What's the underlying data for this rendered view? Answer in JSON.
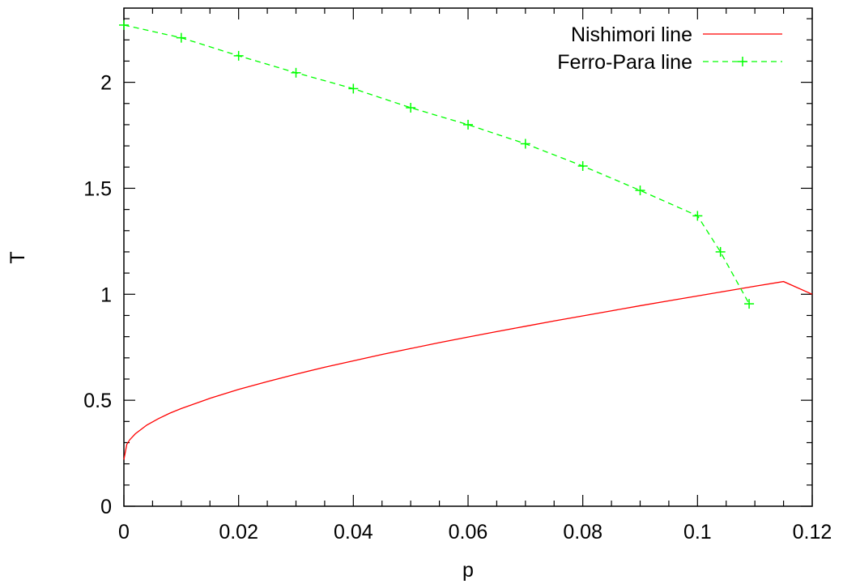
{
  "chart_data": {
    "type": "line",
    "xlabel": "p",
    "ylabel": "T",
    "xlim": [
      0,
      0.12
    ],
    "ylim": [
      0,
      2.35
    ],
    "xticks": [
      "0",
      "0.02",
      "0.04",
      "0.06",
      "0.08",
      "0.1",
      "0.12"
    ],
    "xtick_values": [
      0,
      0.02,
      0.04,
      0.06,
      0.08,
      0.1,
      0.12
    ],
    "yticks": [
      "0",
      "0.5",
      "1",
      "1.5",
      "2"
    ],
    "ytick_values": [
      0,
      0.5,
      1,
      1.5,
      2
    ],
    "legend_position": "top-right",
    "grid": false,
    "series": [
      {
        "name": "Nishimori line",
        "style": "solid",
        "color": "#ff0000",
        "markers": false,
        "x": [
          0,
          0.0005,
          0.001,
          0.002,
          0.004,
          0.006,
          0.008,
          0.01,
          0.015,
          0.02,
          0.025,
          0.03,
          0.035,
          0.04,
          0.045,
          0.05,
          0.055,
          0.06,
          0.065,
          0.07,
          0.075,
          0.08,
          0.085,
          0.09,
          0.095,
          0.1,
          0.105,
          0.11,
          0.115,
          0.12
        ],
        "y": [
          0.22,
          0.291,
          0.313,
          0.342,
          0.383,
          0.413,
          0.439,
          0.461,
          0.509,
          0.551,
          0.588,
          0.623,
          0.656,
          0.686,
          0.716,
          0.744,
          0.772,
          0.798,
          0.824,
          0.849,
          0.874,
          0.898,
          0.922,
          0.946,
          0.969,
          0.992,
          1.015,
          1.038,
          1.06,
          1.0
        ]
      },
      {
        "name": "Ferro-Para line",
        "style": "dashed",
        "color": "#00ff00",
        "markers": true,
        "x": [
          0,
          0.01,
          0.02,
          0.03,
          0.04,
          0.05,
          0.06,
          0.07,
          0.08,
          0.09,
          0.1,
          0.104,
          0.109
        ],
        "y": [
          2.27,
          2.21,
          2.125,
          2.045,
          1.97,
          1.88,
          1.8,
          1.71,
          1.605,
          1.49,
          1.37,
          1.2,
          0.955
        ]
      }
    ]
  }
}
